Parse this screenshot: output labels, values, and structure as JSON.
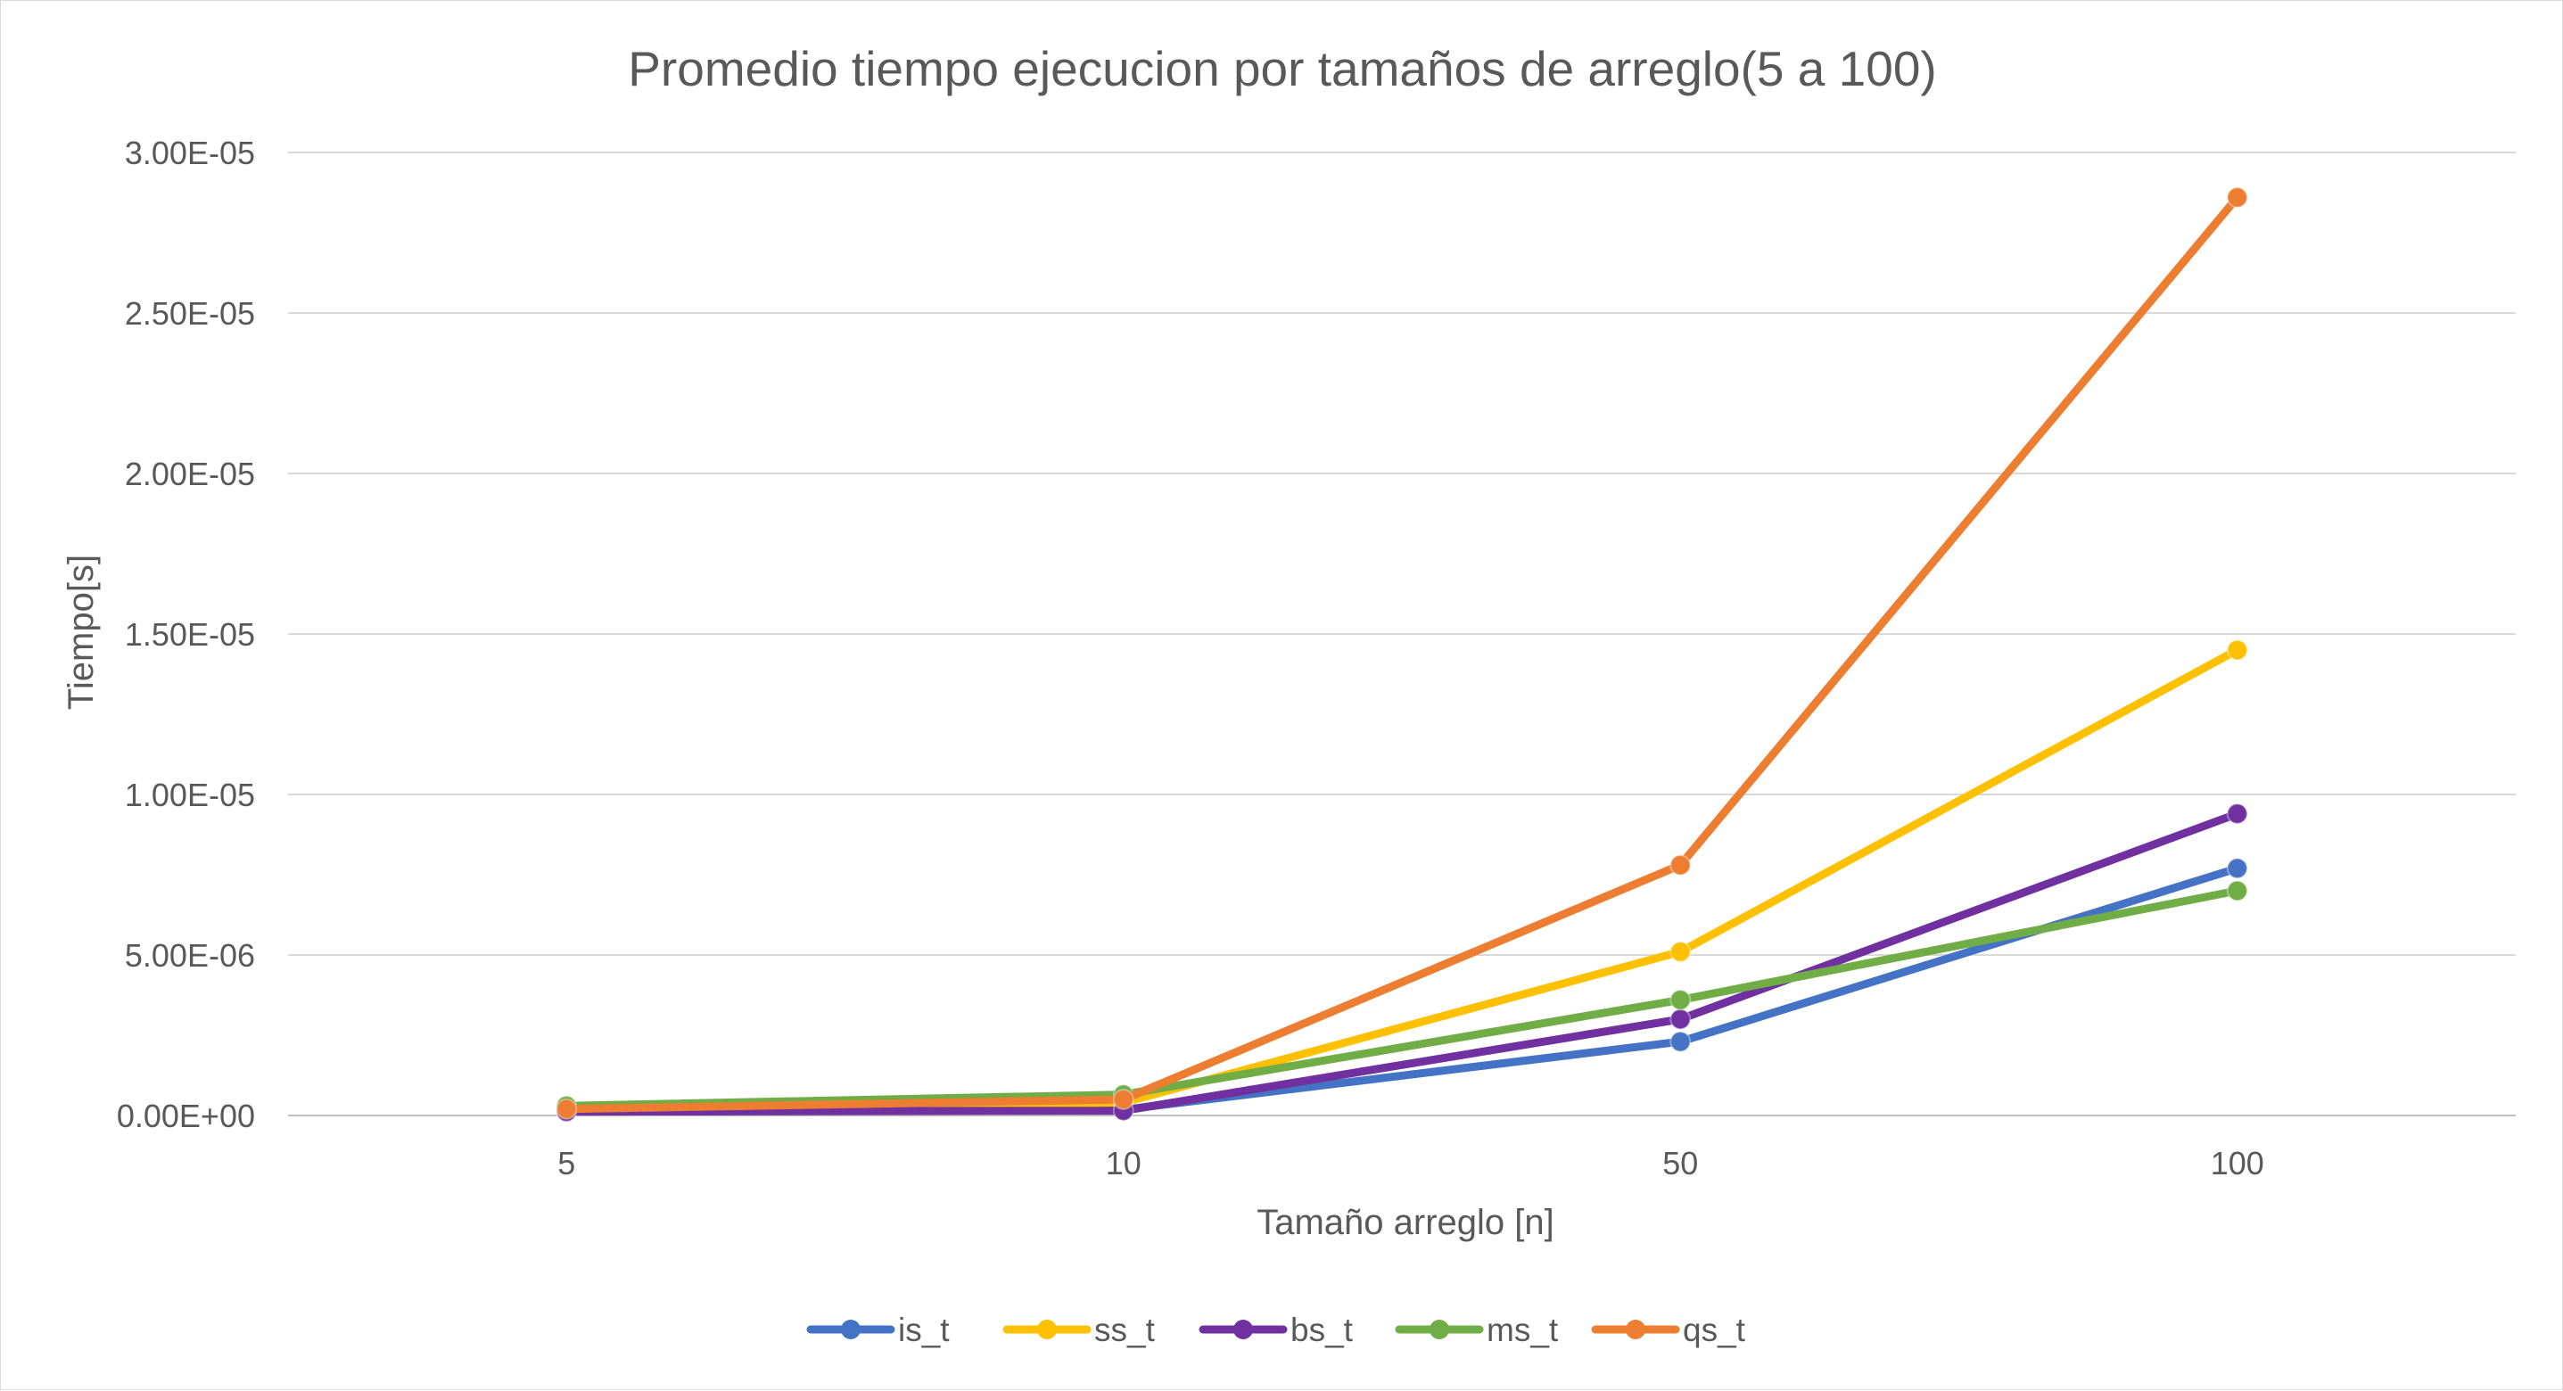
{
  "chart_data": {
    "type": "line",
    "title": "Promedio tiempo ejecucion por tamaños de arreglo(5 a 100)",
    "xlabel": "Tamaño arreglo [n]",
    "ylabel": "Tiempo[s]",
    "categories": [
      "5",
      "10",
      "50",
      "100"
    ],
    "ylim": [
      0,
      3e-05
    ],
    "yticks": [
      {
        "value": 0,
        "label": "0.00E+00"
      },
      {
        "value": 5e-06,
        "label": "5.00E-06"
      },
      {
        "value": 1e-05,
        "label": "1.00E-05"
      },
      {
        "value": 1.5e-05,
        "label": "1.50E-05"
      },
      {
        "value": 2e-05,
        "label": "2.00E-05"
      },
      {
        "value": 2.5e-05,
        "label": "2.50E-05"
      },
      {
        "value": 3e-05,
        "label": "3.00E-05"
      }
    ],
    "grid": true,
    "legend_position": "bottom",
    "series": [
      {
        "name": "is_t",
        "color": "#4472C4",
        "values": [
          1.2e-07,
          1.8e-07,
          2.3e-06,
          7.7e-06
        ]
      },
      {
        "name": "ss_t",
        "color": "#FFC000",
        "values": [
          1.5e-07,
          4e-07,
          5.1e-06,
          1.45e-05
        ]
      },
      {
        "name": "bs_t",
        "color": "#7030A0",
        "values": [
          1.2e-07,
          1.5e-07,
          3e-06,
          9.4e-06
        ]
      },
      {
        "name": "ms_t",
        "color": "#70AD47",
        "values": [
          3e-07,
          6.5e-07,
          3.6e-06,
          7e-06
        ]
      },
      {
        "name": "qs_t",
        "color": "#ED7D31",
        "values": [
          2e-07,
          5e-07,
          7.8e-06,
          2.86e-05
        ]
      }
    ]
  }
}
